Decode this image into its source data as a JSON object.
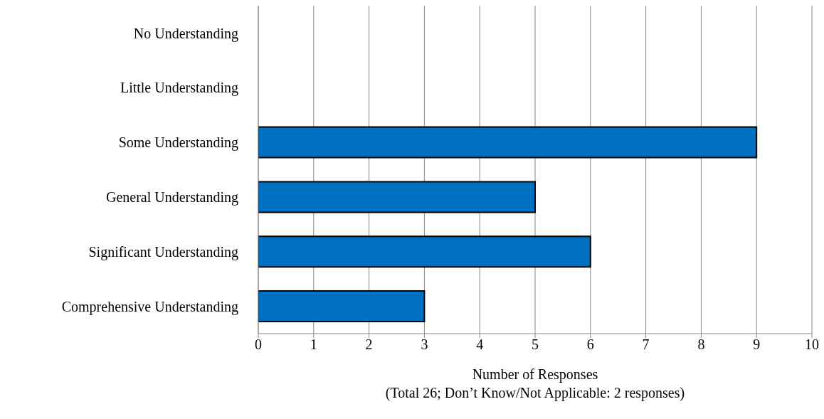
{
  "chart_data": {
    "type": "bar",
    "orientation": "horizontal",
    "categories": [
      "No Understanding",
      "Little Understanding",
      "Some Understanding",
      "General Understanding",
      "Significant Understanding",
      "Comprehensive Understanding"
    ],
    "values": [
      0,
      0,
      9,
      5,
      6,
      3
    ],
    "color": "#0070c0",
    "xlim": [
      0,
      10
    ],
    "xticks": [
      0,
      1,
      2,
      3,
      4,
      5,
      6,
      7,
      8,
      9,
      10
    ],
    "grid": "x",
    "legend": false,
    "xlabel": "Number of Responses",
    "annotations": [
      "(Total 26; Don’t Know/Not Applicable: 2 responses)"
    ]
  }
}
